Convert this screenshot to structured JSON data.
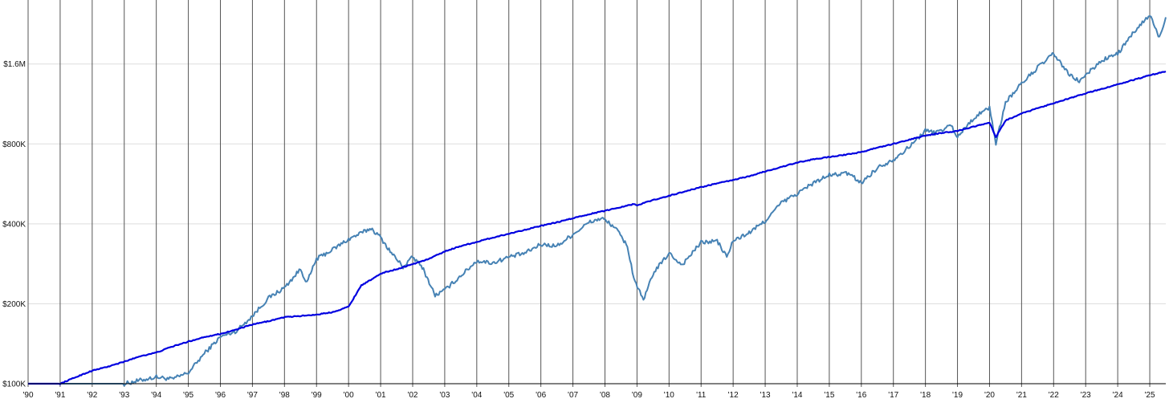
{
  "colors": {
    "series_1": "#4682b4",
    "series_2": "#0000e0",
    "vertical_grid": "#555555",
    "horizontal_grid": "#dddddd",
    "axis": "#000000",
    "background": "#ffffff"
  },
  "chart_data": {
    "type": "line",
    "title": "",
    "xlabel": "",
    "ylabel": "",
    "y_scale": "log",
    "xlim": [
      1990.0,
      2025.5
    ],
    "ylim": [
      100000,
      2600000
    ],
    "grid": {
      "vertical": true,
      "horizontal": true
    },
    "legend": "none",
    "x_ticks": [
      {
        "value": 1990,
        "label": "'90"
      },
      {
        "value": 1991,
        "label": "'91"
      },
      {
        "value": 1992,
        "label": "'92"
      },
      {
        "value": 1993,
        "label": "'93"
      },
      {
        "value": 1994,
        "label": "'94"
      },
      {
        "value": 1995,
        "label": "'95"
      },
      {
        "value": 1996,
        "label": "'96"
      },
      {
        "value": 1997,
        "label": "'97"
      },
      {
        "value": 1998,
        "label": "'98"
      },
      {
        "value": 1999,
        "label": "'99"
      },
      {
        "value": 2000,
        "label": "'00"
      },
      {
        "value": 2001,
        "label": "'01"
      },
      {
        "value": 2002,
        "label": "'02"
      },
      {
        "value": 2003,
        "label": "'03"
      },
      {
        "value": 2004,
        "label": "'04"
      },
      {
        "value": 2005,
        "label": "'05"
      },
      {
        "value": 2006,
        "label": "'06"
      },
      {
        "value": 2007,
        "label": "'07"
      },
      {
        "value": 2008,
        "label": "'08"
      },
      {
        "value": 2009,
        "label": "'09"
      },
      {
        "value": 2010,
        "label": "'10"
      },
      {
        "value": 2011,
        "label": "'11"
      },
      {
        "value": 2012,
        "label": "'12"
      },
      {
        "value": 2013,
        "label": "'13"
      },
      {
        "value": 2014,
        "label": "'14"
      },
      {
        "value": 2015,
        "label": "'15"
      },
      {
        "value": 2016,
        "label": "'16"
      },
      {
        "value": 2017,
        "label": "'17"
      },
      {
        "value": 2018,
        "label": "'18"
      },
      {
        "value": 2019,
        "label": "'19"
      },
      {
        "value": 2020,
        "label": "'20"
      },
      {
        "value": 2021,
        "label": "'21"
      },
      {
        "value": 2022,
        "label": "'22"
      },
      {
        "value": 2023,
        "label": "'23"
      },
      {
        "value": 2024,
        "label": "'24"
      },
      {
        "value": 2025,
        "label": "'25"
      }
    ],
    "y_ticks": [
      {
        "value": 100000,
        "label": "$100K"
      },
      {
        "value": 200000,
        "label": "$200K"
      },
      {
        "value": 400000,
        "label": "$400K"
      },
      {
        "value": 800000,
        "label": "$800K"
      },
      {
        "value": 1600000,
        "label": "$1.6M"
      }
    ],
    "series": [
      {
        "color": "#4682b4",
        "points": [
          [
            1990.0,
            100000
          ],
          [
            1993.0,
            100000
          ],
          [
            1993.1,
            100500
          ],
          [
            1993.5,
            103000
          ],
          [
            1994.0,
            106000
          ],
          [
            1994.5,
            104000
          ],
          [
            1995.0,
            110000
          ],
          [
            1995.5,
            130000
          ],
          [
            1996.0,
            150000
          ],
          [
            1996.5,
            158000
          ],
          [
            1997.0,
            180000
          ],
          [
            1997.5,
            210000
          ],
          [
            1998.0,
            230000
          ],
          [
            1998.5,
            270000
          ],
          [
            1998.7,
            240000
          ],
          [
            1999.0,
            295000
          ],
          [
            1999.5,
            320000
          ],
          [
            2000.0,
            350000
          ],
          [
            2000.7,
            385000
          ],
          [
            2001.0,
            355000
          ],
          [
            2001.3,
            315000
          ],
          [
            2001.7,
            275000
          ],
          [
            2002.0,
            300000
          ],
          [
            2002.3,
            275000
          ],
          [
            2002.7,
            215000
          ],
          [
            2003.0,
            225000
          ],
          [
            2003.5,
            255000
          ],
          [
            2004.0,
            290000
          ],
          [
            2004.5,
            285000
          ],
          [
            2005.0,
            300000
          ],
          [
            2005.5,
            310000
          ],
          [
            2006.0,
            335000
          ],
          [
            2006.5,
            330000
          ],
          [
            2007.0,
            365000
          ],
          [
            2007.5,
            405000
          ],
          [
            2007.9,
            420000
          ],
          [
            2008.3,
            390000
          ],
          [
            2008.7,
            330000
          ],
          [
            2008.9,
            250000
          ],
          [
            2009.2,
            205000
          ],
          [
            2009.5,
            260000
          ],
          [
            2010.0,
            310000
          ],
          [
            2010.4,
            280000
          ],
          [
            2011.0,
            340000
          ],
          [
            2011.5,
            345000
          ],
          [
            2011.8,
            300000
          ],
          [
            2012.0,
            345000
          ],
          [
            2012.5,
            370000
          ],
          [
            2013.0,
            410000
          ],
          [
            2013.5,
            480000
          ],
          [
            2014.0,
            520000
          ],
          [
            2014.5,
            570000
          ],
          [
            2015.0,
            610000
          ],
          [
            2015.6,
            620000
          ],
          [
            2016.0,
            570000
          ],
          [
            2016.5,
            650000
          ],
          [
            2017.0,
            700000
          ],
          [
            2017.5,
            780000
          ],
          [
            2018.0,
            900000
          ],
          [
            2018.3,
            880000
          ],
          [
            2018.8,
            940000
          ],
          [
            2019.0,
            850000
          ],
          [
            2019.5,
            1000000
          ],
          [
            2020.0,
            1100000
          ],
          [
            2020.2,
            800000
          ],
          [
            2020.5,
            1150000
          ],
          [
            2021.0,
            1350000
          ],
          [
            2021.5,
            1550000
          ],
          [
            2022.0,
            1750000
          ],
          [
            2022.5,
            1450000
          ],
          [
            2022.8,
            1380000
          ],
          [
            2023.0,
            1450000
          ],
          [
            2023.5,
            1650000
          ],
          [
            2024.0,
            1750000
          ],
          [
            2024.5,
            2100000
          ],
          [
            2025.0,
            2450000
          ],
          [
            2025.2,
            2150000
          ],
          [
            2025.3,
            2000000
          ],
          [
            2025.5,
            2400000
          ]
        ]
      },
      {
        "color": "#0000e0",
        "points": [
          [
            1990.0,
            100000
          ],
          [
            1991.0,
            100000
          ],
          [
            1991.5,
            106000
          ],
          [
            1992.0,
            112000
          ],
          [
            1992.5,
            116000
          ],
          [
            1993.0,
            121000
          ],
          [
            1993.5,
            127000
          ],
          [
            1994.0,
            131000
          ],
          [
            1994.5,
            138000
          ],
          [
            1995.0,
            144000
          ],
          [
            1995.5,
            150000
          ],
          [
            1996.0,
            154000
          ],
          [
            1996.5,
            160000
          ],
          [
            1997.0,
            167000
          ],
          [
            1997.5,
            172000
          ],
          [
            1998.0,
            178000
          ],
          [
            1998.5,
            180000
          ],
          [
            1999.0,
            182000
          ],
          [
            1999.5,
            186000
          ],
          [
            2000.0,
            195000
          ],
          [
            2000.4,
            235000
          ],
          [
            2000.8,
            250000
          ],
          [
            2001.0,
            260000
          ],
          [
            2001.5,
            270000
          ],
          [
            2002.0,
            282000
          ],
          [
            2002.5,
            295000
          ],
          [
            2003.0,
            315000
          ],
          [
            2003.5,
            330000
          ],
          [
            2004.0,
            342000
          ],
          [
            2004.5,
            355000
          ],
          [
            2005.0,
            367000
          ],
          [
            2005.5,
            380000
          ],
          [
            2006.0,
            393000
          ],
          [
            2006.5,
            405000
          ],
          [
            2007.0,
            420000
          ],
          [
            2007.5,
            435000
          ],
          [
            2008.0,
            448000
          ],
          [
            2008.5,
            463000
          ],
          [
            2008.9,
            475000
          ],
          [
            2009.0,
            470000
          ],
          [
            2009.5,
            492000
          ],
          [
            2010.0,
            510000
          ],
          [
            2010.5,
            530000
          ],
          [
            2011.0,
            550000
          ],
          [
            2011.5,
            568000
          ],
          [
            2012.0,
            585000
          ],
          [
            2012.5,
            605000
          ],
          [
            2013.0,
            630000
          ],
          [
            2013.5,
            655000
          ],
          [
            2014.0,
            680000
          ],
          [
            2014.5,
            700000
          ],
          [
            2015.0,
            715000
          ],
          [
            2015.5,
            728000
          ],
          [
            2016.0,
            745000
          ],
          [
            2016.5,
            775000
          ],
          [
            2017.0,
            800000
          ],
          [
            2017.5,
            830000
          ],
          [
            2018.0,
            860000
          ],
          [
            2018.5,
            880000
          ],
          [
            2019.0,
            895000
          ],
          [
            2019.5,
            930000
          ],
          [
            2020.0,
            960000
          ],
          [
            2020.2,
            850000
          ],
          [
            2020.5,
            980000
          ],
          [
            2021.0,
            1040000
          ],
          [
            2021.5,
            1090000
          ],
          [
            2022.0,
            1140000
          ],
          [
            2022.5,
            1190000
          ],
          [
            2023.0,
            1240000
          ],
          [
            2023.5,
            1290000
          ],
          [
            2024.0,
            1340000
          ],
          [
            2024.5,
            1395000
          ],
          [
            2025.0,
            1450000
          ],
          [
            2025.5,
            1500000
          ]
        ]
      }
    ]
  }
}
